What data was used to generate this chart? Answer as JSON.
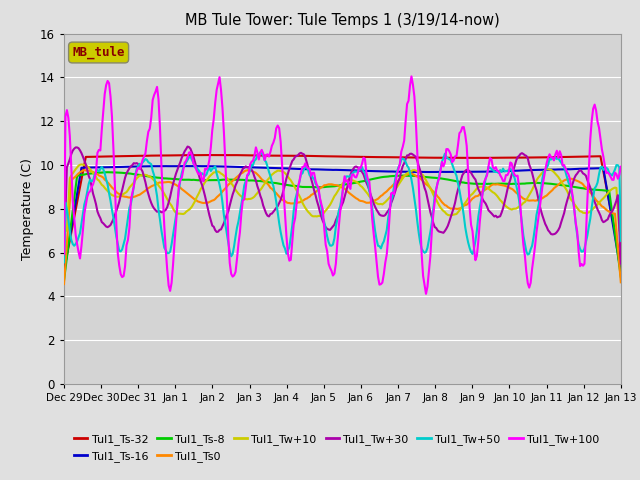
{
  "title": "MB Tule Tower: Tule Temps 1 (3/19/14-now)",
  "ylabel": "Temperature (C)",
  "ylim": [
    0,
    16
  ],
  "yticks": [
    0,
    2,
    4,
    6,
    8,
    10,
    12,
    14,
    16
  ],
  "xtick_labels": [
    "Dec 29",
    "Dec 30",
    "Dec 31",
    "Jan 1",
    "Jan 2",
    "Jan 3",
    "Jan 4",
    "Jan 5",
    "Jan 6",
    "Jan 7",
    "Jan 8",
    "Jan 9",
    "Jan 10",
    "Jan 11",
    "Jan 12",
    "Jan 13"
  ],
  "legend_label": "MB_tule",
  "series": [
    {
      "label": "Tul1_Ts-32",
      "color": "#cc0000"
    },
    {
      "label": "Tul1_Ts-16",
      "color": "#0000cc"
    },
    {
      "label": "Tul1_Ts-8",
      "color": "#00cc00"
    },
    {
      "label": "Tul1_Ts0",
      "color": "#ff8800"
    },
    {
      "label": "Tul1_Tw+10",
      "color": "#cccc00"
    },
    {
      "label": "Tul1_Tw+30",
      "color": "#aa00aa"
    },
    {
      "label": "Tul1_Tw+50",
      "color": "#00cccc"
    },
    {
      "label": "Tul1_Tw+100",
      "color": "#ff00ff"
    }
  ],
  "bg_color": "#e0e0e0",
  "plot_bg_color": "#d4d4d4",
  "grid_color": "#ffffff",
  "box_fill_color": "#cccc00",
  "box_text_color": "#880000",
  "box_edge_color": "#888866"
}
